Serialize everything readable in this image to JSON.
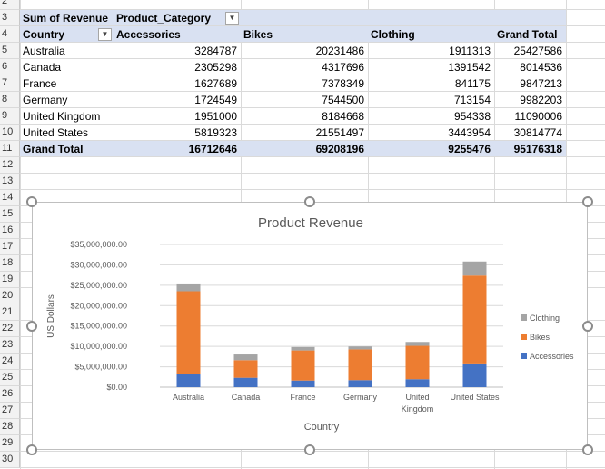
{
  "row_numbers": [
    "2",
    "3",
    "4",
    "5",
    "6",
    "7",
    "8",
    "9",
    "10",
    "11",
    "12",
    "13",
    "14",
    "15",
    "16",
    "17",
    "18",
    "19",
    "20",
    "21",
    "22",
    "23",
    "24",
    "25",
    "26",
    "27",
    "28",
    "29",
    "30"
  ],
  "pivot": {
    "values_label": "Sum of Revenue",
    "column_field": "Product_Category",
    "row_field": "Country",
    "columns": [
      "Accessories",
      "Bikes",
      "Clothing",
      "Grand Total"
    ],
    "rows": [
      {
        "country": "Australia",
        "values": [
          "3284787",
          "20231486",
          "1911313",
          "25427586"
        ]
      },
      {
        "country": "Canada",
        "values": [
          "2305298",
          "4317696",
          "1391542",
          "8014536"
        ]
      },
      {
        "country": "France",
        "values": [
          "1627689",
          "7378349",
          "841175",
          "9847213"
        ]
      },
      {
        "country": "Germany",
        "values": [
          "1724549",
          "7544500",
          "713154",
          "9982203"
        ]
      },
      {
        "country": "United Kingdom",
        "values": [
          "1951000",
          "8184668",
          "954338",
          "11090006"
        ]
      },
      {
        "country": "United States",
        "values": [
          "5819323",
          "21551497",
          "3443954",
          "30814774"
        ]
      }
    ],
    "grand_total_label": "Grand Total",
    "grand_total_values": [
      "16712646",
      "69208196",
      "9255476",
      "95176318"
    ]
  },
  "chart_data": {
    "type": "bar",
    "stacked": true,
    "title": "Product Revenue",
    "xlabel": "Country",
    "ylabel": "US Dollars",
    "categories": [
      "Australia",
      "Canada",
      "France",
      "Germany",
      "United Kingdom",
      "United States"
    ],
    "category_lines": [
      [
        "Australia"
      ],
      [
        "Canada"
      ],
      [
        "France"
      ],
      [
        "Germany"
      ],
      [
        "United",
        "Kingdom"
      ],
      [
        "United States"
      ]
    ],
    "ylim": [
      0,
      35000000
    ],
    "y_ticks": [
      0,
      5000000,
      10000000,
      15000000,
      20000000,
      25000000,
      30000000,
      35000000
    ],
    "y_tick_labels": [
      "$0.00",
      "$5,000,000.00",
      "$10,000,000.00",
      "$15,000,000.00",
      "$20,000,000.00",
      "$25,000,000.00",
      "$30,000,000.00",
      "$35,000,000.00"
    ],
    "grid": true,
    "legend_position": "right",
    "series": [
      {
        "name": "Accessories",
        "color": "#4472c4",
        "values": [
          3284787,
          2305298,
          1627689,
          1724549,
          1951000,
          5819323
        ]
      },
      {
        "name": "Bikes",
        "color": "#ed7d31",
        "values": [
          20231486,
          4317696,
          7378349,
          7544500,
          8184668,
          21551497
        ]
      },
      {
        "name": "Clothing",
        "color": "#a5a5a5",
        "values": [
          1911313,
          1391542,
          841175,
          713154,
          954338,
          3443954
        ]
      }
    ]
  }
}
